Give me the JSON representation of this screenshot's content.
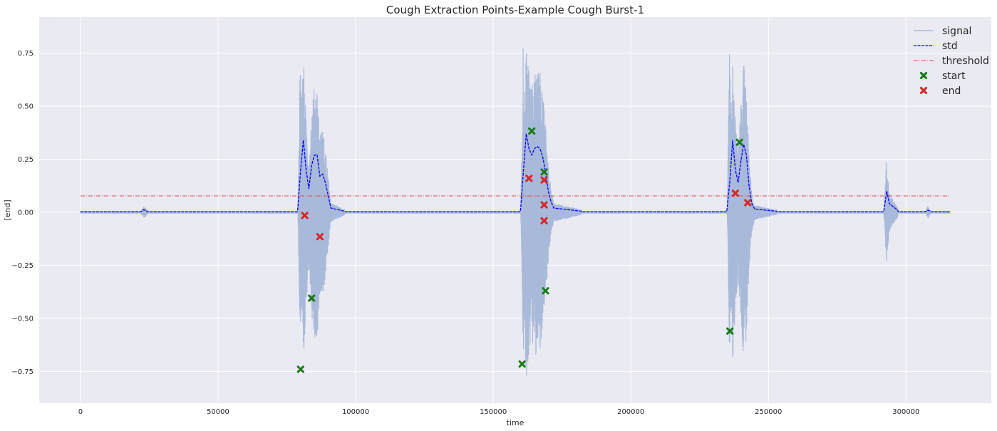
{
  "chart_data": {
    "type": "line",
    "title": "Cough Extraction Points-Example Cough Burst-1",
    "xlabel": "time",
    "ylabel": "[end]",
    "xlim": [
      -15000,
      331000
    ],
    "ylim": [
      -0.9,
      0.92
    ],
    "xticks": [
      0,
      50000,
      100000,
      150000,
      200000,
      250000,
      300000
    ],
    "yticks": [
      -0.75,
      -0.5,
      -0.25,
      0.0,
      0.25,
      0.5,
      0.75
    ],
    "xtick_labels": [
      "0",
      "50000",
      "100000",
      "150000",
      "200000",
      "250000",
      "300000"
    ],
    "ytick_labels": [
      "−0.75",
      "−0.50",
      "−0.25",
      "0.00",
      "0.25",
      "0.50",
      "0.75"
    ],
    "grid": true,
    "legend_position": "top-right",
    "colors": {
      "background": "#eaeaf2",
      "grid": "#ffffff",
      "signal": "#a9b9d9",
      "std": "#0000ff",
      "threshold": "#e34a4a",
      "start": "#1a7a1a",
      "end": "#d62728"
    },
    "bursts": [
      {
        "start": 79000,
        "end": 91000,
        "peak_pos": 0.83,
        "peak_neg": -0.83,
        "std": [
          [
            79000,
            0.02
          ],
          [
            80000,
            0.2
          ],
          [
            81000,
            0.34
          ],
          [
            82000,
            0.2
          ],
          [
            83000,
            0.11
          ],
          [
            84000,
            0.22
          ],
          [
            85000,
            0.27
          ],
          [
            86000,
            0.27
          ],
          [
            87000,
            0.17
          ],
          [
            88000,
            0.18
          ],
          [
            89000,
            0.14
          ],
          [
            90000,
            0.08
          ],
          [
            91000,
            0.02
          ],
          [
            96000,
            0.005
          ]
        ]
      },
      {
        "start": 160000,
        "end": 173000,
        "peak_pos": 0.8,
        "peak_neg": -0.82,
        "std": [
          [
            160000,
            0.02
          ],
          [
            161000,
            0.2
          ],
          [
            162000,
            0.37
          ],
          [
            163000,
            0.3
          ],
          [
            164000,
            0.27
          ],
          [
            165000,
            0.3
          ],
          [
            166000,
            0.31
          ],
          [
            167000,
            0.3
          ],
          [
            168000,
            0.26
          ],
          [
            169000,
            0.19
          ],
          [
            170000,
            0.1
          ],
          [
            171000,
            0.05
          ],
          [
            172000,
            0.02
          ],
          [
            182000,
            0.005
          ]
        ]
      },
      {
        "start": 235000,
        "end": 245000,
        "peak_pos": 0.8,
        "peak_neg": -0.82,
        "std": [
          [
            235000,
            0.02
          ],
          [
            236000,
            0.15
          ],
          [
            237000,
            0.34
          ],
          [
            238000,
            0.2
          ],
          [
            239000,
            0.14
          ],
          [
            240000,
            0.24
          ],
          [
            241000,
            0.32
          ],
          [
            242000,
            0.27
          ],
          [
            243000,
            0.12
          ],
          [
            244000,
            0.04
          ],
          [
            245000,
            0.015
          ],
          [
            253000,
            0.005
          ]
        ]
      },
      {
        "start": 292000,
        "end": 297000,
        "peak_pos": 0.27,
        "peak_neg": -0.24,
        "std": [
          [
            292000,
            0.01
          ],
          [
            293000,
            0.1
          ],
          [
            294000,
            0.04
          ],
          [
            295000,
            0.03
          ],
          [
            296000,
            0.02
          ],
          [
            297000,
            0.01
          ]
        ]
      },
      {
        "start": 22000,
        "end": 25000,
        "peak_pos": 0.025,
        "peak_neg": -0.02,
        "std": [
          [
            22000,
            0.003
          ],
          [
            23000,
            0.012
          ],
          [
            24500,
            0.003
          ]
        ]
      },
      {
        "start": 307000,
        "end": 309000,
        "peak_pos": 0.03,
        "peak_neg": -0.02,
        "std": [
          [
            307000,
            0.003
          ],
          [
            308000,
            0.01
          ],
          [
            309000,
            0.003
          ]
        ]
      }
    ],
    "threshold_value": 0.077,
    "threshold_x": [
      0,
      316000
    ],
    "series": [
      {
        "name": "signal",
        "style": "line"
      },
      {
        "name": "std",
        "style": "dashed"
      },
      {
        "name": "threshold",
        "style": "dashdot"
      },
      {
        "name": "start",
        "style": "marker",
        "points": [
          [
            80000,
            -0.74
          ],
          [
            84000,
            -0.405
          ],
          [
            160500,
            -0.715
          ],
          [
            164000,
            0.383
          ],
          [
            168500,
            0.19
          ],
          [
            169000,
            -0.37
          ],
          [
            236000,
            -0.56
          ],
          [
            239500,
            0.33
          ]
        ]
      },
      {
        "name": "end",
        "style": "marker",
        "points": [
          [
            81500,
            -0.015
          ],
          [
            87000,
            -0.115
          ],
          [
            163000,
            0.16
          ],
          [
            168500,
            0.152
          ],
          [
            168500,
            0.035
          ],
          [
            168500,
            -0.04
          ],
          [
            238000,
            0.09
          ],
          [
            242500,
            0.045
          ]
        ]
      }
    ]
  }
}
